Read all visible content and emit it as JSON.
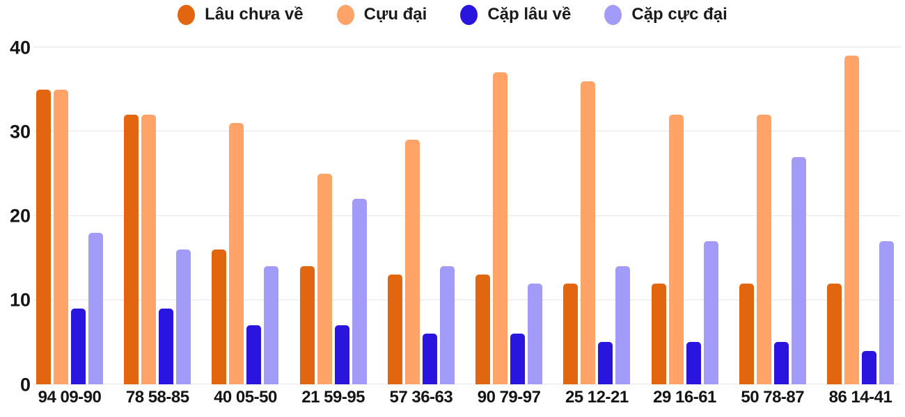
{
  "chart_data": {
    "type": "bar",
    "title": "",
    "xlabel": "",
    "ylabel": "",
    "ylim": [
      0,
      40
    ],
    "yticks": [
      0,
      10,
      20,
      30,
      40
    ],
    "grid": true,
    "legend_position": "top",
    "categories": [
      "94 09-90",
      "78 58-85",
      "40 05-50",
      "21 59-95",
      "57 36-63",
      "90 79-97",
      "25 12-21",
      "29 16-61",
      "50 78-87",
      "86 14-41"
    ],
    "series": [
      {
        "name": "Lâu chưa về",
        "color": "#e2650f",
        "values": [
          35,
          32,
          16,
          14,
          13,
          13,
          12,
          12,
          12,
          12
        ]
      },
      {
        "name": "Cựu đại",
        "color": "#ffa368",
        "values": [
          35,
          32,
          31,
          25,
          29,
          37,
          36,
          32,
          32,
          39
        ]
      },
      {
        "name": "Cặp lâu về",
        "color": "#2915dd",
        "values": [
          9,
          9,
          7,
          7,
          6,
          6,
          5,
          5,
          5,
          4
        ]
      },
      {
        "name": "Cặp cực đại",
        "color": "#a29bf8",
        "values": [
          18,
          16,
          14,
          22,
          14,
          12,
          14,
          17,
          27,
          17
        ]
      }
    ]
  },
  "colors": {
    "background": "#ffffff",
    "gridline": "#e6e6e6",
    "text": "#1b1b1b"
  }
}
